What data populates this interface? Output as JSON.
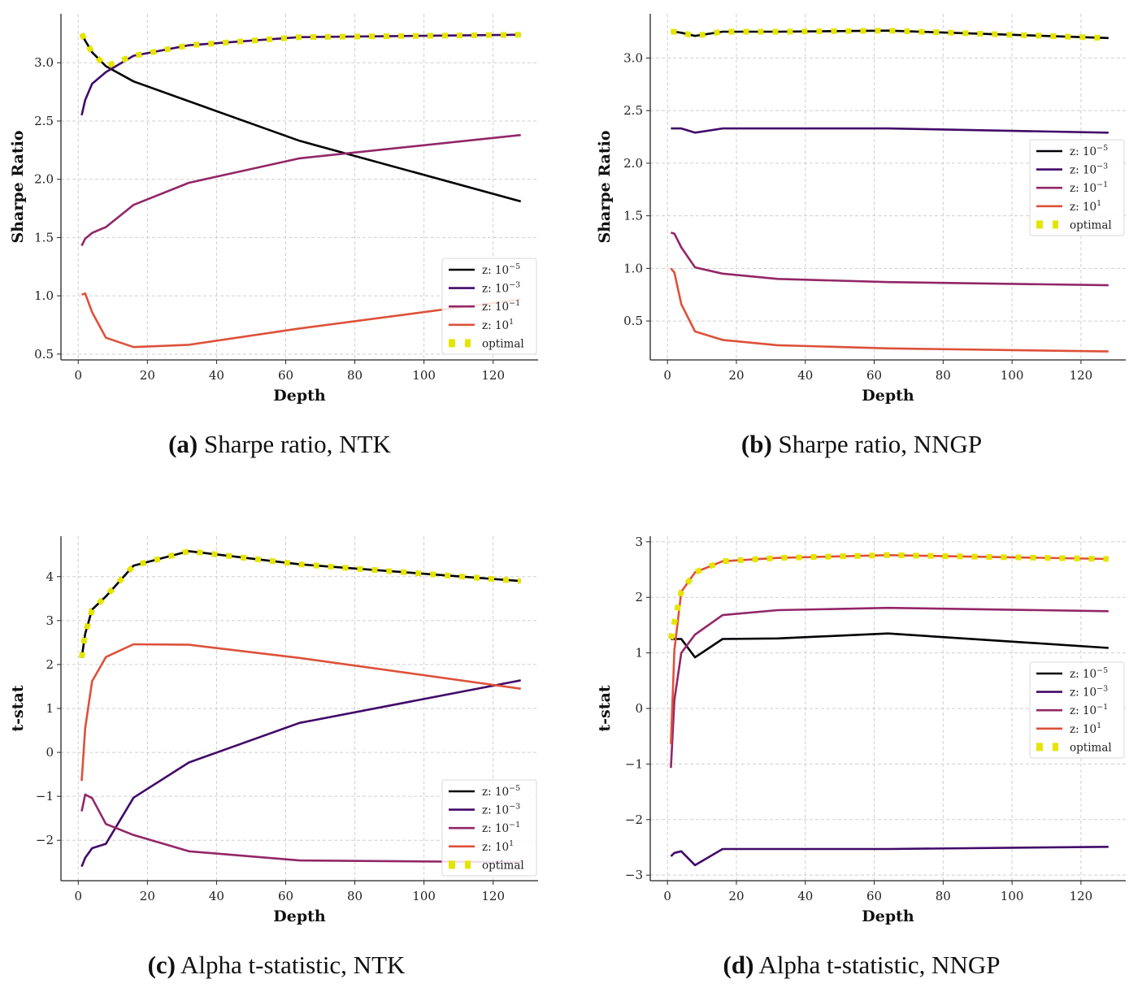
{
  "chart_data": [
    {
      "id": "a",
      "type": "line",
      "caption_tag": "(a)",
      "caption": "Sharpe ratio, NTK",
      "xlabel": "Depth",
      "ylabel": "Sharpe Ratio",
      "xlim": [
        -5,
        133
      ],
      "ylim": [
        0.45,
        3.42
      ],
      "xticks": [
        0,
        20,
        40,
        60,
        80,
        100,
        120
      ],
      "yticks": [
        0.5,
        1.0,
        1.5,
        2.0,
        2.5,
        3.0
      ],
      "ytick_labels": [
        "0.5",
        "1.0",
        "1.5",
        "2.0",
        "2.5",
        "3.0"
      ],
      "grid": true,
      "legend_position": "lower-right",
      "x": [
        1,
        2,
        4,
        8,
        16,
        32,
        64,
        128
      ],
      "series": [
        {
          "name": "z: 10^-5",
          "color": "#000004",
          "values": [
            3.25,
            3.19,
            3.09,
            2.97,
            2.84,
            2.67,
            2.33,
            1.81
          ]
        },
        {
          "name": "z: 10^-3",
          "color": "#420a68",
          "values": [
            2.55,
            2.68,
            2.82,
            2.92,
            3.06,
            3.15,
            3.22,
            3.24
          ]
        },
        {
          "name": "z: 10^-1",
          "color": "#932667",
          "values": [
            1.43,
            1.49,
            1.54,
            1.59,
            1.78,
            1.97,
            2.18,
            2.38
          ]
        },
        {
          "name": "z: 10^1",
          "color": "#dd513a",
          "values": [
            1.01,
            1.02,
            0.86,
            0.64,
            0.56,
            0.58,
            0.72,
            0.97
          ]
        }
      ],
      "optimal": {
        "name": "optimal",
        "color": "#e5e500",
        "values": [
          3.25,
          3.19,
          3.09,
          2.97,
          3.06,
          3.15,
          3.22,
          3.24
        ]
      }
    },
    {
      "id": "b",
      "type": "line",
      "caption_tag": "(b)",
      "caption": "Sharpe ratio, NNGP",
      "xlabel": "Depth",
      "ylabel": "Sharpe Ratio",
      "xlim": [
        -5,
        133
      ],
      "ylim": [
        0.13,
        3.42
      ],
      "xticks": [
        0,
        20,
        40,
        60,
        80,
        100,
        120
      ],
      "yticks": [
        0.5,
        1.0,
        1.5,
        2.0,
        2.5,
        3.0
      ],
      "ytick_labels": [
        "0.5",
        "1.0",
        "1.5",
        "2.0",
        "2.5",
        "3.0"
      ],
      "grid": true,
      "legend_position": "center-right",
      "x": [
        1,
        2,
        4,
        8,
        16,
        32,
        64,
        128
      ],
      "series": [
        {
          "name": "z: 10^-5",
          "color": "#000004",
          "values": [
            3.25,
            3.25,
            3.24,
            3.21,
            3.25,
            3.25,
            3.26,
            3.19
          ]
        },
        {
          "name": "z: 10^-3",
          "color": "#420a68",
          "values": [
            2.33,
            2.33,
            2.33,
            2.29,
            2.33,
            2.33,
            2.33,
            2.29
          ]
        },
        {
          "name": "z: 10^-1",
          "color": "#932667",
          "values": [
            1.34,
            1.33,
            1.2,
            1.01,
            0.95,
            0.9,
            0.87,
            0.84
          ]
        },
        {
          "name": "z: 10^1",
          "color": "#dd513a",
          "values": [
            1.0,
            0.96,
            0.66,
            0.4,
            0.32,
            0.27,
            0.24,
            0.21
          ]
        }
      ],
      "optimal": {
        "name": "optimal",
        "color": "#e5e500",
        "values": [
          3.25,
          3.25,
          3.24,
          3.21,
          3.25,
          3.25,
          3.26,
          3.19
        ]
      }
    },
    {
      "id": "c",
      "type": "line",
      "caption_tag": "(c)",
      "caption": "Alpha t-statistic, NTK",
      "xlabel": "Depth",
      "ylabel": "t-stat",
      "xlim": [
        -5,
        133
      ],
      "ylim": [
        -2.92,
        4.92
      ],
      "xticks": [
        0,
        20,
        40,
        60,
        80,
        100,
        120
      ],
      "yticks": [
        -2,
        -1,
        0,
        1,
        2,
        3,
        4
      ],
      "ytick_labels": [
        "−2",
        "−1",
        "0",
        "1",
        "2",
        "3",
        "4"
      ],
      "grid": true,
      "legend_position": "lower-right",
      "x": [
        1,
        2,
        4,
        8,
        16,
        32,
        64,
        128
      ],
      "series": [
        {
          "name": "z: 10^-5",
          "color": "#000004",
          "values": [
            2.15,
            2.7,
            3.25,
            3.55,
            4.25,
            4.58,
            4.28,
            3.9
          ]
        },
        {
          "name": "z: 10^-3",
          "color": "#420a68",
          "values": [
            -2.6,
            -2.4,
            -2.18,
            -2.08,
            -1.03,
            -0.23,
            0.67,
            1.64
          ]
        },
        {
          "name": "z: 10^-1",
          "color": "#932667",
          "values": [
            -1.34,
            -0.96,
            -1.04,
            -1.63,
            -1.88,
            -2.25,
            -2.46,
            -2.5
          ]
        },
        {
          "name": "z: 10^1",
          "color": "#dd513a",
          "values": [
            -0.65,
            0.55,
            1.62,
            2.17,
            2.46,
            2.45,
            2.15,
            1.45
          ]
        }
      ],
      "optimal": {
        "name": "optimal",
        "color": "#e5e500",
        "values": [
          2.15,
          2.7,
          3.25,
          3.55,
          4.25,
          4.58,
          4.28,
          3.9
        ]
      }
    },
    {
      "id": "d",
      "type": "line",
      "caption_tag": "(d)",
      "caption": "Alpha t-statistic, NNGP",
      "xlabel": "Depth",
      "ylabel": "t-stat",
      "xlim": [
        -5,
        133
      ],
      "ylim": [
        -3.1,
        3.1
      ],
      "xticks": [
        0,
        20,
        40,
        60,
        80,
        100,
        120
      ],
      "yticks": [
        -3,
        -2,
        -1,
        0,
        1,
        2,
        3
      ],
      "ytick_labels": [
        "−3",
        "−2",
        "−1",
        "0",
        "1",
        "2",
        "3"
      ],
      "grid": true,
      "legend_position": "center-right",
      "x": [
        1,
        2,
        4,
        8,
        16,
        32,
        64,
        128
      ],
      "series": [
        {
          "name": "z: 10^-5",
          "color": "#000004",
          "values": [
            1.25,
            1.25,
            1.25,
            0.92,
            1.25,
            1.26,
            1.35,
            1.09
          ]
        },
        {
          "name": "z: 10^-3",
          "color": "#420a68",
          "values": [
            -2.66,
            -2.6,
            -2.57,
            -2.82,
            -2.53,
            -2.53,
            -2.53,
            -2.49
          ]
        },
        {
          "name": "z: 10^-1",
          "color": "#932667",
          "values": [
            -1.07,
            0.15,
            1.0,
            1.33,
            1.68,
            1.77,
            1.81,
            1.75
          ]
        },
        {
          "name": "z: 10^1",
          "color": "#dd513a",
          "values": [
            -0.64,
            1.05,
            2.1,
            2.45,
            2.65,
            2.71,
            2.76,
            2.69
          ]
        }
      ],
      "optimal": {
        "name": "optimal",
        "color": "#e5e500",
        "values": [
          1.25,
          1.55,
          2.1,
          2.45,
          2.65,
          2.71,
          2.76,
          2.69
        ]
      }
    }
  ],
  "legend": {
    "entries": [
      {
        "base": "z: 10",
        "exp": "−5"
      },
      {
        "base": "z: 10",
        "exp": "−3"
      },
      {
        "base": "z: 10",
        "exp": "−1"
      },
      {
        "base": "z: 10",
        "exp": "1"
      },
      {
        "base": "optimal",
        "exp": ""
      }
    ]
  }
}
